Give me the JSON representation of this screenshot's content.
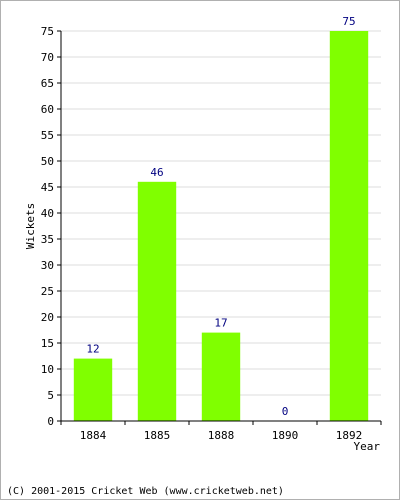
{
  "chart_data": {
    "type": "bar",
    "categories": [
      "1884",
      "1885",
      "1888",
      "1890",
      "1892"
    ],
    "values": [
      12,
      46,
      17,
      0,
      75
    ],
    "title": "",
    "xlabel": "Year",
    "ylabel": "Wickets",
    "ylim": [
      0,
      75
    ],
    "yticks": [
      0,
      5,
      10,
      15,
      20,
      25,
      30,
      35,
      40,
      45,
      50,
      55,
      60,
      65,
      70,
      75
    ],
    "grid": true,
    "data_labels": true,
    "colors": {
      "bar": "#80ff00",
      "data_label": "#000080",
      "grid": "#dddddd",
      "axis": "#000000"
    }
  },
  "footer": {
    "text": "(C) 2001-2015 Cricket Web (www.cricketweb.net)"
  }
}
